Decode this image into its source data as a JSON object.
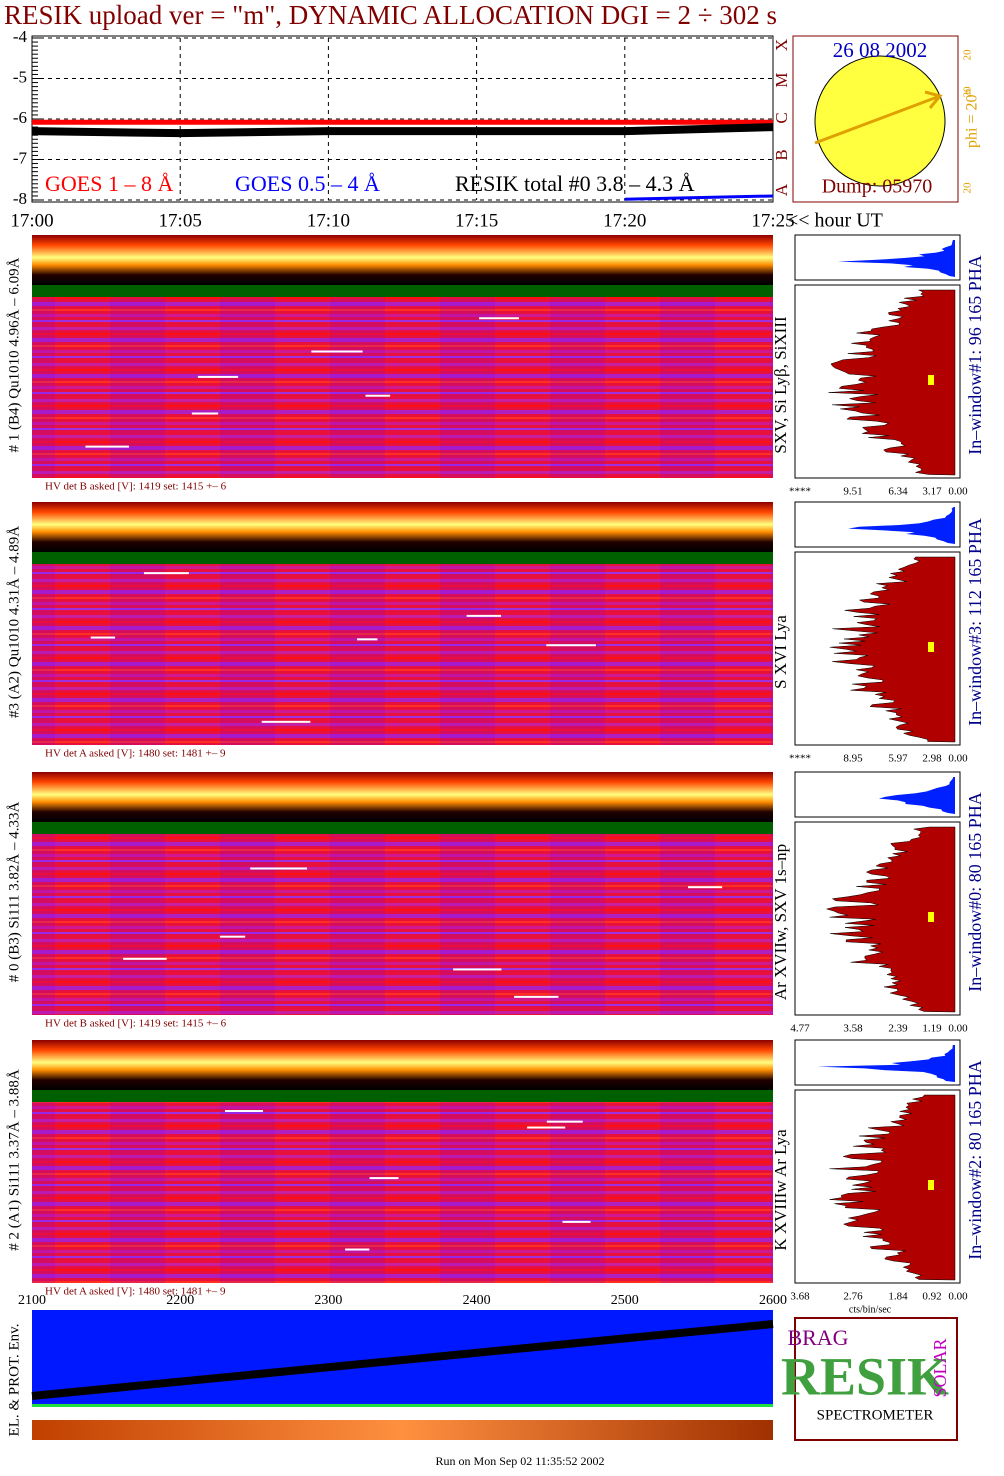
{
  "chart_data": {
    "type": "line",
    "title": "RESIK upload ver = \"m\", DYNAMIC ALLOCATION  DGI =   2 ÷ 302 s",
    "x": [
      "17:00",
      "17:05",
      "17:10",
      "17:15",
      "17:20",
      "17:25"
    ],
    "x_axis_label": "<< hour UT",
    "ylim": [
      -8,
      -4
    ],
    "yticks": [
      -8,
      -7,
      -6,
      -5,
      -4
    ],
    "grid": true,
    "series": [
      {
        "name": "GOES 1 – 8 Å",
        "color": "#ff0000",
        "values": [
          -6.08,
          -6.08,
          -6.08,
          -6.08,
          -6.08,
          -6.08
        ]
      },
      {
        "name": "GOES 0.5 – 4 Å",
        "color": "#0000ff",
        "values": [
          null,
          null,
          null,
          null,
          -7.98,
          -7.9
        ]
      },
      {
        "name": "RESIK total #0  3.8 – 4.3 Å",
        "color": "#000000",
        "values": [
          -6.3,
          -6.35,
          -6.3,
          -6.3,
          -6.3,
          -6.2
        ]
      }
    ]
  },
  "sun": {
    "date": "26 08 2002",
    "phi": "phi = 20°",
    "scale": [
      "20",
      "20",
      "20"
    ],
    "dump": "Dump: 05970",
    "classes": [
      "X",
      "M",
      "C",
      "B",
      "A"
    ]
  },
  "panels": [
    {
      "label": "# 1 (B4) Qu1010 4.96Å – 6.09Å",
      "lines": "SXV, Si Lyβ, SiXIII",
      "window": "In–window#1:  96 165  PHA",
      "hv": "HV det B asked [V]:  1419 set:  1415  +–    6",
      "pha_ticks": [
        "****",
        "9.51",
        "6.34",
        "3.17",
        "0.00"
      ]
    },
    {
      "label": "#3 (A2) Qu1010  4.31Å – 4.89Å",
      "lines": "S XVI Lya",
      "window": "In–window#3:  112 165  PHA",
      "hv": "HV det A asked [V]:  1480 set:  1481  +–    9",
      "pha_ticks": [
        "****",
        "8.95",
        "5.97",
        "2.98",
        "0.00"
      ]
    },
    {
      "label": "# 0 (B3) Si111  3.82Å – 4.33Å",
      "lines": "Ar XVIIw,  SXV 1s–np",
      "window": "In–window#0:  80 165  PHA",
      "hv": "HV det B asked [V]:  1419 set:  1415  +–    6",
      "pha_ticks": [
        "4.77",
        "3.58",
        "2.39",
        "1.19",
        "0.00"
      ]
    },
    {
      "label": "# 2 (A1) Si111  3.37Å – 3.88Å",
      "lines": "K XVIIIw  Ar Lya",
      "window": "In–window#2:  80 165  PHA",
      "hv": "HV det A asked [V]:  1480 set:  1481  +–    9",
      "pha_ticks": [
        "3.68",
        "2.76",
        "1.84",
        "0.92",
        "0.00"
      ]
    }
  ],
  "pha_unit": "cts/bin/sec",
  "channel_axis": [
    "2100",
    "2200",
    "2300",
    "2400",
    "2500",
    "2600"
  ],
  "env_label": "EL. & PROT. Env.",
  "logo": {
    "top": "BRAG",
    "big": "RESIK",
    "side": "SOLAR",
    "bottom": "SPECTROMETER"
  },
  "footer": "Run on Mon Sep 02 11:35:52 2002"
}
